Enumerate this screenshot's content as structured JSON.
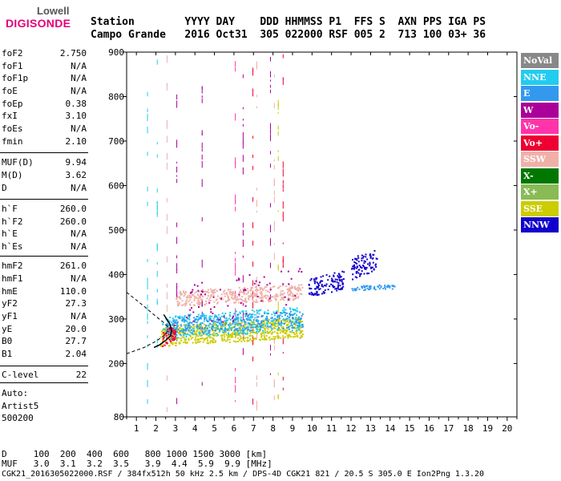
{
  "logo": {
    "top": "Lowell",
    "main": "DIGISONDE"
  },
  "header": {
    "row1": "Station        YYYY DAY    DDD HHMMSS P1  FFS S  AXN PPS IGA PS",
    "row2": "Campo Grande   2016 Oct31  305 022000 RSF 005 2  713 100 03+ 36"
  },
  "params": [
    {
      "k": "foF2",
      "v": "2.750"
    },
    {
      "k": "foF1",
      "v": "N/A"
    },
    {
      "k": "foF1p",
      "v": "N/A"
    },
    {
      "k": "foE",
      "v": "N/A"
    },
    {
      "k": "foEp",
      "v": "0.38"
    },
    {
      "k": "fxI",
      "v": "3.10"
    },
    {
      "k": "foEs",
      "v": "N/A"
    },
    {
      "k": "fmin",
      "v": "2.10"
    },
    {
      "k": "MUF(D)",
      "v": "9.94"
    },
    {
      "k": "M(D)",
      "v": "3.62"
    },
    {
      "k": "D",
      "v": "N/A"
    },
    {
      "k": "h`F",
      "v": "260.0"
    },
    {
      "k": "h`F2",
      "v": "260.0"
    },
    {
      "k": "h`E",
      "v": "N/A"
    },
    {
      "k": "h`Es",
      "v": "N/A"
    },
    {
      "k": "hmF2",
      "v": "261.0"
    },
    {
      "k": "hmF1",
      "v": "N/A"
    },
    {
      "k": "hmE",
      "v": "110.0"
    },
    {
      "k": "yF2",
      "v": "27.3"
    },
    {
      "k": "yF1",
      "v": "N/A"
    },
    {
      "k": "yE",
      "v": "20.0"
    },
    {
      "k": "B0",
      "v": "27.7"
    },
    {
      "k": "B1",
      "v": "2.04"
    },
    {
      "k": "C-level",
      "v": "22"
    }
  ],
  "auto": {
    "label": "Auto:",
    "name": "Artist5",
    "version": "500200"
  },
  "legend": [
    {
      "label": "NoVal",
      "color": "#888888"
    },
    {
      "label": "NNE",
      "color": "#22ccee"
    },
    {
      "label": "E",
      "color": "#3399ee"
    },
    {
      "label": "W",
      "color": "#aa0099"
    },
    {
      "label": "Vo-",
      "color": "#ff33aa"
    },
    {
      "label": "Vo+",
      "color": "#ee0033"
    },
    {
      "label": "SSW",
      "color": "#f0b0a8"
    },
    {
      "label": "X-",
      "color": "#007700"
    },
    {
      "label": "X+",
      "color": "#88bb55"
    },
    {
      "label": "SSE",
      "color": "#cccc00"
    },
    {
      "label": "NNW",
      "color": "#1100cc"
    }
  ],
  "bottom": {
    "row1": "D     100  200  400  600   800 1000 1500 3000 [km]",
    "row2": "MUF   3.0  3.1  3.2  3.5   3.9  4.4  5.9  9.9 [MHz]",
    "row3": "CGK21_2016305022000.RSF / 384fx512h 50 kHz 2.5 km / DPS-4D CGK21 821 / 20.5 S 305.0 E Ion2Png 1.3.20"
  },
  "chart_data": {
    "type": "scatter",
    "xlim": [
      0.5,
      20.5
    ],
    "ylim": [
      80,
      900
    ],
    "xticks": [
      1,
      2,
      3,
      4,
      5,
      6,
      7,
      8,
      9,
      10,
      11,
      12,
      13,
      14,
      15,
      16,
      17,
      18,
      19,
      20
    ],
    "yticks": [
      80,
      200,
      300,
      400,
      500,
      600,
      700,
      800,
      900
    ],
    "xlabel": "",
    "ylabel": "",
    "clusters": [
      {
        "series": "SSW",
        "color": "#f0b0a8",
        "x": [
          3.0,
          9.5
        ],
        "y": [
          330,
          380
        ],
        "n": 420
      },
      {
        "series": "SSE",
        "color": "#cccc00",
        "x": [
          2.2,
          9.5
        ],
        "y": [
          240,
          305
        ],
        "n": 650
      },
      {
        "series": "NNE",
        "color": "#22ccee",
        "x": [
          2.3,
          9.5
        ],
        "y": [
          255,
          330
        ],
        "n": 380
      },
      {
        "series": "E",
        "color": "#3399ee",
        "x": [
          2.5,
          9.5
        ],
        "y": [
          265,
          320
        ],
        "n": 300
      },
      {
        "series": "NNW",
        "color": "#1100cc",
        "x": [
          9.8,
          11.6
        ],
        "y": [
          350,
          410
        ],
        "n": 120
      },
      {
        "series": "NNW",
        "color": "#1100cc",
        "x": [
          12.0,
          13.3
        ],
        "y": [
          390,
          460
        ],
        "n": 90
      },
      {
        "series": "E",
        "color": "#3399ee",
        "x": [
          12.0,
          14.2
        ],
        "y": [
          365,
          380
        ],
        "n": 60
      },
      {
        "series": "Vo+",
        "color": "#ee0033",
        "x": [
          2.3,
          3.0
        ],
        "y": [
          240,
          290
        ],
        "n": 50
      },
      {
        "series": "W",
        "color": "#aa0099",
        "x": [
          3.5,
          9.5
        ],
        "y": [
          280,
          420
        ],
        "n": 70
      }
    ],
    "profile_curve": [
      [
        1.9,
        236
      ],
      [
        2.2,
        242
      ],
      [
        2.5,
        252
      ],
      [
        2.75,
        262
      ],
      [
        2.8,
        275
      ],
      [
        2.7,
        290
      ],
      [
        2.4,
        310
      ]
    ],
    "dashed_curves": [
      [
        [
          0.5,
          360
        ],
        [
          1.3,
          332
        ],
        [
          2.0,
          306
        ],
        [
          2.4,
          292
        ],
        [
          2.7,
          278
        ]
      ],
      [
        [
          0.5,
          222
        ],
        [
          1.4,
          236
        ],
        [
          2.0,
          250
        ],
        [
          2.4,
          262
        ],
        [
          2.7,
          278
        ]
      ]
    ]
  }
}
